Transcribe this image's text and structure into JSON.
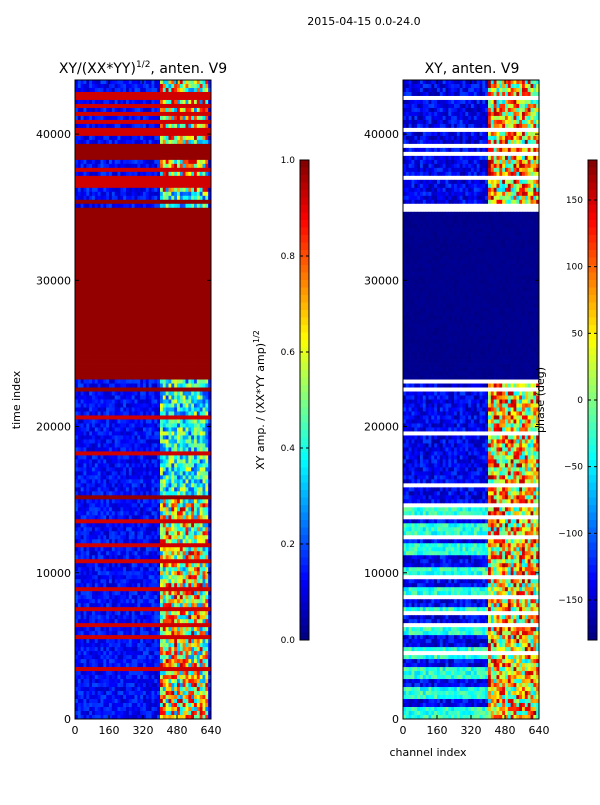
{
  "suptitle": "2015-04-15 0.0-24.0",
  "chart_data": [
    {
      "type": "heatmap",
      "title": "XY/(XX*YY)",
      "title_sup": "1/2",
      "title_suffix": ", anten. V9",
      "xlabel": "",
      "ylabel": "time index",
      "xlim": [
        0,
        640
      ],
      "ylim": [
        0,
        43700
      ],
      "xticks": [
        0,
        160,
        320,
        480,
        640
      ],
      "yticks": [
        0,
        10000,
        20000,
        30000,
        40000
      ],
      "xtick_labels": [
        "0",
        "160",
        "320",
        "480",
        "640"
      ],
      "ytick_labels": [
        "0",
        "10000",
        "20000",
        "30000",
        "40000"
      ],
      "colormap": "jet",
      "colorbar": {
        "label": "XY amp. / (XX*YY amp)",
        "label_sup": "1/2",
        "range": [
          0.0,
          1.0
        ],
        "ticks": [
          0.0,
          0.2,
          0.4,
          0.6,
          0.8,
          1.0
        ],
        "tick_labels": [
          "0.0",
          "0.2",
          "0.4",
          "0.6",
          "0.8",
          "1.0"
        ]
      },
      "saturated_time_bands": [
        [
          23300,
          35000
        ],
        [
          38200,
          39300
        ],
        [
          35200,
          35600
        ],
        [
          22300,
          22700
        ],
        [
          14900,
          15300
        ]
      ],
      "thin_saturated_rows": [
        42800,
        42400,
        41900,
        41400,
        40900,
        40400,
        39900,
        37600,
        37100,
        36600,
        20700,
        18200,
        13500,
        11800,
        10800,
        8900,
        7500,
        6500,
        5600,
        3500
      ],
      "active_channel_bands": [
        [
          400,
          620
        ]
      ]
    },
    {
      "type": "heatmap",
      "title": "XY, anten. V9",
      "xlabel": "channel index",
      "ylabel": "",
      "xlim": [
        0,
        640
      ],
      "ylim": [
        0,
        43700
      ],
      "xticks": [
        0,
        160,
        320,
        480,
        640
      ],
      "yticks": [
        0,
        10000,
        20000,
        30000,
        40000
      ],
      "xtick_labels": [
        "0",
        "160",
        "320",
        "480",
        "640"
      ],
      "ytick_labels": [
        "0",
        "10000",
        "20000",
        "30000",
        "40000"
      ],
      "colormap": "jet",
      "colorbar": {
        "label": "phase (deg)",
        "range": [
          -180,
          180
        ],
        "ticks": [
          -150,
          -100,
          -50,
          0,
          50,
          100,
          150
        ],
        "tick_labels": [
          "−150",
          "−100",
          "−50",
          "0",
          "50",
          "100",
          "150"
        ]
      },
      "low_phase_band": [
        23300,
        35000
      ],
      "white_gap_rows": [
        42500,
        41800,
        40300,
        39200,
        38600,
        37000,
        35200,
        34900,
        23100,
        22600,
        19600,
        15900,
        14500,
        13700,
        12500,
        11200,
        9800,
        8400,
        7200,
        6300,
        5200,
        4500
      ],
      "active_channel_bands": [
        [
          400,
          640
        ]
      ]
    }
  ]
}
